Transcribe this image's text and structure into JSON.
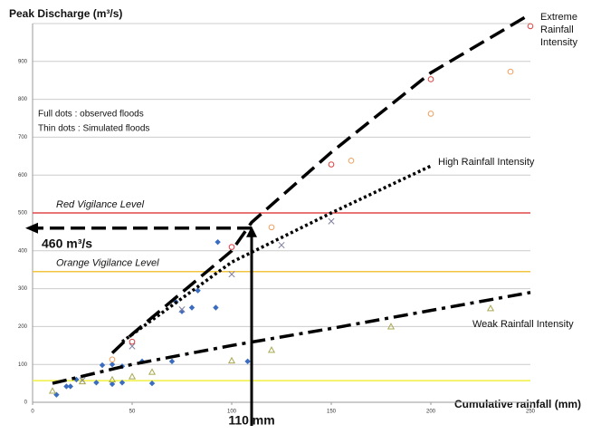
{
  "chart_data": {
    "type": "scatter",
    "y_label": "Peak Discharge (m³/s)",
    "x_label": "Cumulative rainfall (mm)",
    "xlim": [
      0,
      250
    ],
    "xticks": [
      0,
      50,
      100,
      150,
      200,
      250
    ],
    "ylim": [
      0,
      1000
    ],
    "yticks": [
      0,
      100,
      200,
      300,
      400,
      500,
      600,
      700,
      800,
      900
    ],
    "grid": true,
    "notes": [
      "Full dots : observed floods",
      "Thin dots : Simulated floods"
    ],
    "reference_lines": [
      {
        "value": 500,
        "label": "Red Vigilance Level",
        "color": "#e04848"
      },
      {
        "value": 345,
        "label": "Orange Vigilance Level",
        "color": "#f2c440"
      },
      {
        "value": 57,
        "color": "#f0f040"
      }
    ],
    "scatter_series": [
      {
        "marker": "diamond",
        "color": "#3a6cc0",
        "x": [
          12,
          17,
          19,
          22,
          32,
          35,
          40,
          40,
          45,
          45,
          55,
          60,
          70,
          72,
          75,
          80,
          83,
          92,
          93,
          108
        ],
        "values": [
          20,
          42,
          42,
          60,
          52,
          98,
          48,
          100,
          95,
          52,
          108,
          50,
          108,
          265,
          240,
          250,
          295,
          250,
          423,
          108
        ]
      },
      {
        "marker": "circle",
        "color": "#e04040",
        "x": [
          50,
          100,
          150,
          200,
          250
        ],
        "values": [
          160,
          410,
          628,
          853,
          993
        ]
      },
      {
        "marker": "circle",
        "color": "#f0a060",
        "x": [
          40,
          120,
          160,
          200,
          240
        ],
        "values": [
          113,
          462,
          638,
          762,
          873
        ]
      },
      {
        "marker": "cross",
        "color": "#8080a0",
        "x": [
          25,
          50,
          75,
          100,
          125,
          150
        ],
        "values": [
          58,
          148,
          245,
          338,
          415,
          478
        ]
      },
      {
        "marker": "triangle",
        "color": "#a8a850",
        "x": [
          10,
          25,
          40,
          50,
          60,
          100,
          120,
          180,
          230
        ],
        "values": [
          30,
          55,
          60,
          68,
          80,
          110,
          138,
          200,
          248
        ]
      }
    ],
    "line_series": [
      {
        "name": "Extreme Rainfall Intensity",
        "dash": "18 8",
        "x": [
          40,
          50,
          100,
          110,
          150,
          200,
          250
        ],
        "values": [
          130,
          180,
          400,
          475,
          660,
          870,
          1025
        ]
      },
      {
        "name": "High Rainfall Intensity",
        "dash": "3 3",
        "x": [
          45,
          100,
          150,
          200
        ],
        "values": [
          160,
          370,
          500,
          624
        ]
      },
      {
        "name": "Weak Rainfall Intensity",
        "dash": "16 6 4 6",
        "x": [
          10,
          50,
          100,
          150,
          250
        ],
        "values": [
          50,
          100,
          150,
          195,
          290
        ]
      }
    ],
    "marker_point": {
      "x": 110,
      "y": 460,
      "x_label": "110 mm",
      "y_label": "460 m³/s"
    }
  }
}
